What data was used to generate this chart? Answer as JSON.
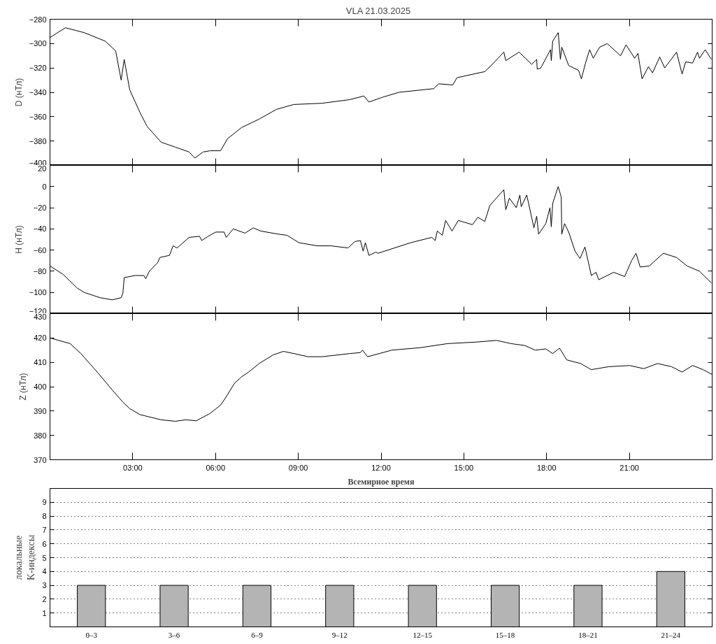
{
  "chart_data": [
    {
      "type": "line",
      "title": "VLA   21.03.2025",
      "ylabel": "D (нТл)",
      "tick_labels": "y",
      "xlim": [
        0,
        24
      ],
      "xticks": [
        {
          "value": 3,
          "label": null
        },
        {
          "value": 6,
          "label": null
        },
        {
          "value": 9,
          "label": null
        },
        {
          "value": 12,
          "label": null
        },
        {
          "value": 15,
          "label": null
        },
        {
          "value": 18,
          "label": null
        },
        {
          "value": 21,
          "label": null
        }
      ],
      "ylim": [
        -400,
        -280
      ],
      "yticks": [
        -400,
        -380,
        -360,
        -340,
        -320,
        -300,
        -280
      ],
      "series": [
        {
          "color": "#000000",
          "x": [
            0,
            0.56,
            1.24,
            2.0,
            2.38,
            2.58,
            2.69,
            2.89,
            3.27,
            3.52,
            4.03,
            4.54,
            5.04,
            5.25,
            5.55,
            5.8,
            6.18,
            6.44,
            6.94,
            7.58,
            8.21,
            8.84,
            9.86,
            10.87,
            11.38,
            11.56,
            12.06,
            12.65,
            13.91,
            14.09,
            14.6,
            14.75,
            15.76,
            15.99,
            16.45,
            16.52,
            17.0,
            17.46,
            17.64,
            17.66,
            17.79,
            18.14,
            18.17,
            18.22,
            18.42,
            18.5,
            18.55,
            18.8,
            19.16,
            19.26,
            19.41,
            19.56,
            19.69,
            19.92,
            20.2,
            20.68,
            20.88,
            21.19,
            21.31,
            21.46,
            21.69,
            21.84,
            22.1,
            22.28,
            22.71,
            22.91,
            23.04,
            23.29,
            23.47,
            23.54,
            23.75,
            23.97
          ],
          "values": [
            -295,
            -287,
            -291,
            -298,
            -306,
            -330,
            -313,
            -338,
            -357,
            -368,
            -381,
            -385,
            -389,
            -394,
            -389,
            -388,
            -388,
            -378,
            -369,
            -362,
            -354,
            -350,
            -349,
            -346,
            -343,
            -348,
            -344,
            -340,
            -337,
            -333,
            -334,
            -328,
            -323,
            -318,
            -307,
            -314,
            -307,
            -317,
            -313,
            -321,
            -320,
            -305,
            -314,
            -298,
            -291,
            -313,
            -303,
            -318,
            -322,
            -329,
            -316,
            -305,
            -312,
            -303,
            -300,
            -310,
            -301,
            -312,
            -308,
            -329,
            -319,
            -324,
            -311,
            -320,
            -307,
            -325,
            -315,
            -316,
            -307,
            -312,
            -305,
            -313
          ]
        }
      ]
    },
    {
      "type": "line",
      "ylabel": "H (нТл)",
      "tick_labels": "y",
      "xlim": [
        0,
        24
      ],
      "xticks": [
        {
          "value": 3,
          "label": null
        },
        {
          "value": 6,
          "label": null
        },
        {
          "value": 9,
          "label": null
        },
        {
          "value": 12,
          "label": null
        },
        {
          "value": 15,
          "label": null
        },
        {
          "value": 18,
          "label": null
        },
        {
          "value": 21,
          "label": null
        }
      ],
      "ylim": [
        -120,
        20
      ],
      "yticks": [
        -120,
        -100,
        -80,
        -60,
        -40,
        -20,
        0,
        20
      ],
      "series": [
        {
          "color": "#000000",
          "x": [
            0,
            0.48,
            0.99,
            1.24,
            1.82,
            2.26,
            2.58,
            2.64,
            2.69,
            3.09,
            3.4,
            3.47,
            3.6,
            3.9,
            3.98,
            4.33,
            4.46,
            4.61,
            5.04,
            5.42,
            5.5,
            5.73,
            6.01,
            6.31,
            6.39,
            6.64,
            7.07,
            7.37,
            7.63,
            8.29,
            8.59,
            9.02,
            9.68,
            10.19,
            10.8,
            11.05,
            11.25,
            11.35,
            11.43,
            11.56,
            11.81,
            11.89,
            13.08,
            13.84,
            13.96,
            14.04,
            14.22,
            14.34,
            14.57,
            14.8,
            15.31,
            15.51,
            15.76,
            15.94,
            16.45,
            16.52,
            16.65,
            16.9,
            17.03,
            17.08,
            17.28,
            17.54,
            17.64,
            17.71,
            17.97,
            18.12,
            18.17,
            18.22,
            18.42,
            18.53,
            18.55,
            18.65,
            18.8,
            19.03,
            19.21,
            19.39,
            19.62,
            19.79,
            19.89,
            20.43,
            20.83,
            21.08,
            21.24,
            21.39,
            21.72,
            22.23,
            22.71,
            23.09,
            23.54,
            23.97
          ],
          "values": [
            -75,
            -83,
            -96,
            -100,
            -105,
            -107,
            -105,
            -101,
            -86,
            -84,
            -84,
            -87,
            -80,
            -72,
            -67,
            -65,
            -56,
            -58,
            -48,
            -47,
            -51,
            -47,
            -43,
            -43,
            -48,
            -40,
            -44,
            -39,
            -42,
            -45,
            -46,
            -53,
            -56,
            -56,
            -58,
            -52,
            -51,
            -61,
            -53,
            -65,
            -62,
            -63,
            -53,
            -48,
            -51,
            -42,
            -46,
            -32,
            -42,
            -32,
            -36,
            -29,
            -33,
            -18,
            -3,
            -22,
            -11,
            -20,
            -8,
            -19,
            -8,
            -39,
            -28,
            -45,
            -35,
            -20,
            -38,
            -16,
            0,
            -10,
            -45,
            -35,
            -43,
            -61,
            -68,
            -57,
            -84,
            -81,
            -88,
            -81,
            -85,
            -70,
            -63,
            -76,
            -75,
            -63,
            -67,
            -75,
            -80,
            -91
          ]
        }
      ]
    },
    {
      "type": "line",
      "ylabel": "Z (нТл)",
      "xlabel": "Всемирное время",
      "xlim": [
        0,
        24
      ],
      "xticks": [
        {
          "value": 3,
          "label": "03:00"
        },
        {
          "value": 6,
          "label": "06:00"
        },
        {
          "value": 9,
          "label": "09:00"
        },
        {
          "value": 12,
          "label": "12:00"
        },
        {
          "value": 15,
          "label": "15:00"
        },
        {
          "value": 18,
          "label": "18:00"
        },
        {
          "value": 21,
          "label": "21:00"
        }
      ],
      "ylim": [
        370,
        430
      ],
      "yticks": [
        370,
        380,
        390,
        400,
        410,
        420,
        430
      ],
      "series": [
        {
          "color": "#000000",
          "x": [
            0,
            0.73,
            1.12,
            1.75,
            2.26,
            2.64,
            2.89,
            3.27,
            4.03,
            4.54,
            4.92,
            5.3,
            5.8,
            6.18,
            6.31,
            6.69,
            6.94,
            7.2,
            7.58,
            8.08,
            8.46,
            8.84,
            9.35,
            9.86,
            10.87,
            11.25,
            11.33,
            11.51,
            12.39,
            13.41,
            14.42,
            15.43,
            16.19,
            16.7,
            17.21,
            17.59,
            17.97,
            18.22,
            18.47,
            18.73,
            19.23,
            19.62,
            20.25,
            21.01,
            21.52,
            22.02,
            22.53,
            22.91,
            23.29,
            23.67,
            24.0
          ],
          "values": [
            420,
            417.7,
            413.6,
            405.5,
            398.6,
            393.7,
            391,
            388.5,
            386.4,
            385.8,
            386.4,
            386,
            389,
            392.4,
            394.5,
            401.4,
            404,
            406,
            409.5,
            413,
            414.5,
            413.6,
            412.3,
            412.3,
            413.6,
            414,
            415,
            412.3,
            415,
            416,
            417.7,
            418.3,
            419,
            417.7,
            416.9,
            415,
            415.5,
            413.6,
            415.8,
            411,
            409.5,
            407,
            408.2,
            408.7,
            407.4,
            409.5,
            408.2,
            406,
            408.7,
            407,
            405
          ]
        }
      ]
    },
    {
      "type": "bar",
      "ylabel": "локальные\nK-индексы",
      "grid": "y",
      "categories": [
        "0–3",
        "3–6",
        "6–9",
        "9–12",
        "12–15",
        "15–18",
        "18–21",
        "21–24"
      ],
      "values": [
        3,
        3,
        3,
        3,
        3,
        3,
        3,
        4
      ],
      "color": "#b4b4b4",
      "ylim": [
        0,
        10
      ],
      "yticks": [
        1,
        2,
        3,
        4,
        5,
        6,
        7,
        8,
        9
      ]
    }
  ]
}
